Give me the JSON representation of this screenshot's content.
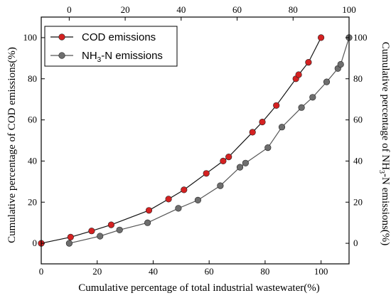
{
  "chart_data": {
    "type": "line",
    "xlabel": "Cumulative percentage of total industrial wastewater(%)",
    "ylabel_left": "Cumulative percentage of COD emissions(%)",
    "ylabel_right": "Cumulative percentage of NH3-N emissions(%)",
    "ylabel_right_parts": {
      "before": "Cumulative percentage of NH",
      "sub": "3",
      "after": "-N emissions(%)"
    },
    "xlim_bottom": [
      0,
      110
    ],
    "xlim_top": [
      -10,
      100
    ],
    "ylim": [
      -10,
      110
    ],
    "xticks_bottom": [
      0,
      20,
      40,
      60,
      80,
      100
    ],
    "xticks_top": [
      0,
      20,
      40,
      60,
      80,
      100
    ],
    "yticks": [
      0,
      20,
      40,
      60,
      80,
      100
    ],
    "legend_position": "top-left",
    "grid": false,
    "series": [
      {
        "name": "COD emissions",
        "name_parts": {
          "before": "COD emissions",
          "sub": "",
          "after": ""
        },
        "x_axis": "bottom",
        "color": "#d42121",
        "x": [
          0,
          10.5,
          18,
          25,
          38.5,
          45.5,
          51,
          59,
          65,
          67,
          75.5,
          79,
          84,
          91,
          92,
          95.5,
          100
        ],
        "y": [
          0,
          3,
          6,
          9,
          16,
          21.5,
          26,
          34,
          40,
          42,
          54,
          59,
          67,
          80,
          82,
          88,
          100
        ]
      },
      {
        "name": "NH3-N emissions",
        "name_parts": {
          "before": "NH",
          "sub": "3",
          "after": "-N emissions"
        },
        "x_axis": "top",
        "color": "#6e6e6e",
        "x": [
          0,
          11,
          18,
          28,
          39,
          46,
          54,
          61,
          63,
          71,
          76,
          83,
          87,
          92,
          96,
          97,
          100
        ],
        "y": [
          0,
          3.5,
          6.5,
          10,
          17,
          21,
          28,
          37,
          39,
          46.5,
          56.5,
          66,
          71,
          78.5,
          85,
          87,
          100
        ]
      }
    ]
  }
}
